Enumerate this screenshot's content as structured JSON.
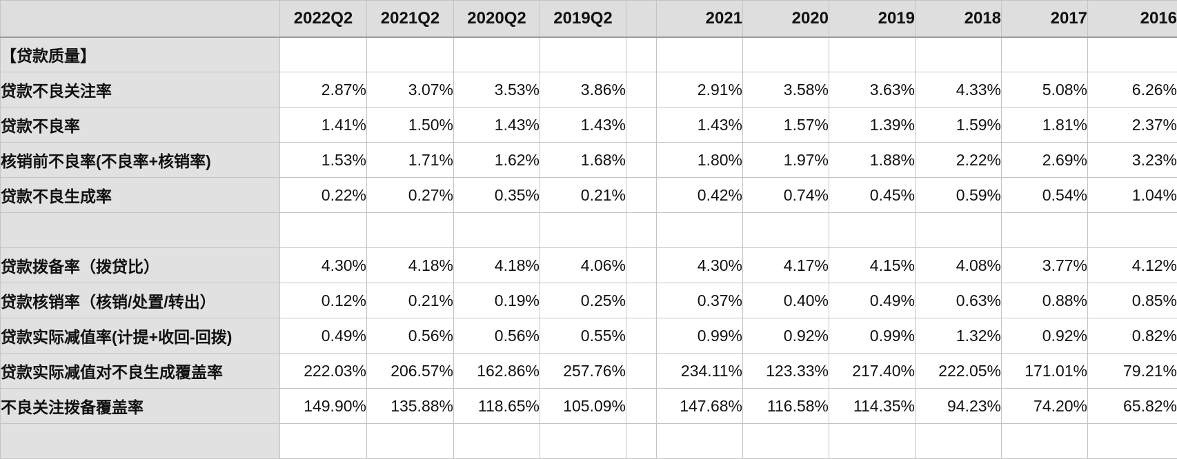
{
  "header": {
    "corner": "",
    "quarter_columns": [
      "2022Q2",
      "2021Q2",
      "2020Q2",
      "2019Q2"
    ],
    "spacer": "",
    "year_columns": [
      "2021",
      "2020",
      "2019",
      "2018",
      "2017",
      "2016"
    ]
  },
  "rows": [
    {
      "label": "【贷款质量】",
      "quarters": [
        "",
        "",
        "",
        ""
      ],
      "years": [
        "",
        "",
        "",
        "",
        "",
        ""
      ]
    },
    {
      "label": "贷款不良关注率",
      "quarters": [
        "2.87%",
        "3.07%",
        "3.53%",
        "3.86%"
      ],
      "years": [
        "2.91%",
        "3.58%",
        "3.63%",
        "4.33%",
        "5.08%",
        "6.26%"
      ]
    },
    {
      "label": "贷款不良率",
      "quarters": [
        "1.41%",
        "1.50%",
        "1.43%",
        "1.43%"
      ],
      "years": [
        "1.43%",
        "1.57%",
        "1.39%",
        "1.59%",
        "1.81%",
        "2.37%"
      ]
    },
    {
      "label": "核销前不良率(不良率+核销率)",
      "quarters": [
        "1.53%",
        "1.71%",
        "1.62%",
        "1.68%"
      ],
      "years": [
        "1.80%",
        "1.97%",
        "1.88%",
        "2.22%",
        "2.69%",
        "3.23%"
      ]
    },
    {
      "label": "贷款不良生成率",
      "quarters": [
        "0.22%",
        "0.27%",
        "0.35%",
        "0.21%"
      ],
      "years": [
        "0.42%",
        "0.74%",
        "0.45%",
        "0.59%",
        "0.54%",
        "1.04%"
      ]
    },
    {
      "label": "",
      "quarters": [
        "",
        "",
        "",
        ""
      ],
      "years": [
        "",
        "",
        "",
        "",
        "",
        ""
      ]
    },
    {
      "label": "贷款拨备率（拨贷比）",
      "quarters": [
        "4.30%",
        "4.18%",
        "4.18%",
        "4.06%"
      ],
      "years": [
        "4.30%",
        "4.17%",
        "4.15%",
        "4.08%",
        "3.77%",
        "4.12%"
      ]
    },
    {
      "label": "贷款核销率（核销/处置/转出）",
      "quarters": [
        "0.12%",
        "0.21%",
        "0.19%",
        "0.25%"
      ],
      "years": [
        "0.37%",
        "0.40%",
        "0.49%",
        "0.63%",
        "0.88%",
        "0.85%"
      ]
    },
    {
      "label": "贷款实际减值率(计提+收回-回拨)",
      "quarters": [
        "0.49%",
        "0.56%",
        "0.56%",
        "0.55%"
      ],
      "years": [
        "0.99%",
        "0.92%",
        "0.99%",
        "1.32%",
        "0.92%",
        "0.82%"
      ]
    },
    {
      "label": "贷款实际减值对不良生成覆盖率",
      "quarters": [
        "222.03%",
        "206.57%",
        "162.86%",
        "257.76%"
      ],
      "years": [
        "234.11%",
        "123.33%",
        "217.40%",
        "222.05%",
        "171.01%",
        "79.21%"
      ]
    },
    {
      "label": "不良关注拨备覆盖率",
      "quarters": [
        "149.90%",
        "135.88%",
        "118.65%",
        "105.09%"
      ],
      "years": [
        "147.68%",
        "116.58%",
        "114.35%",
        "94.23%",
        "74.20%",
        "65.82%"
      ]
    },
    {
      "label": "",
      "quarters": [
        "",
        "",
        "",
        ""
      ],
      "years": [
        "",
        "",
        "",
        "",
        "",
        ""
      ]
    }
  ]
}
